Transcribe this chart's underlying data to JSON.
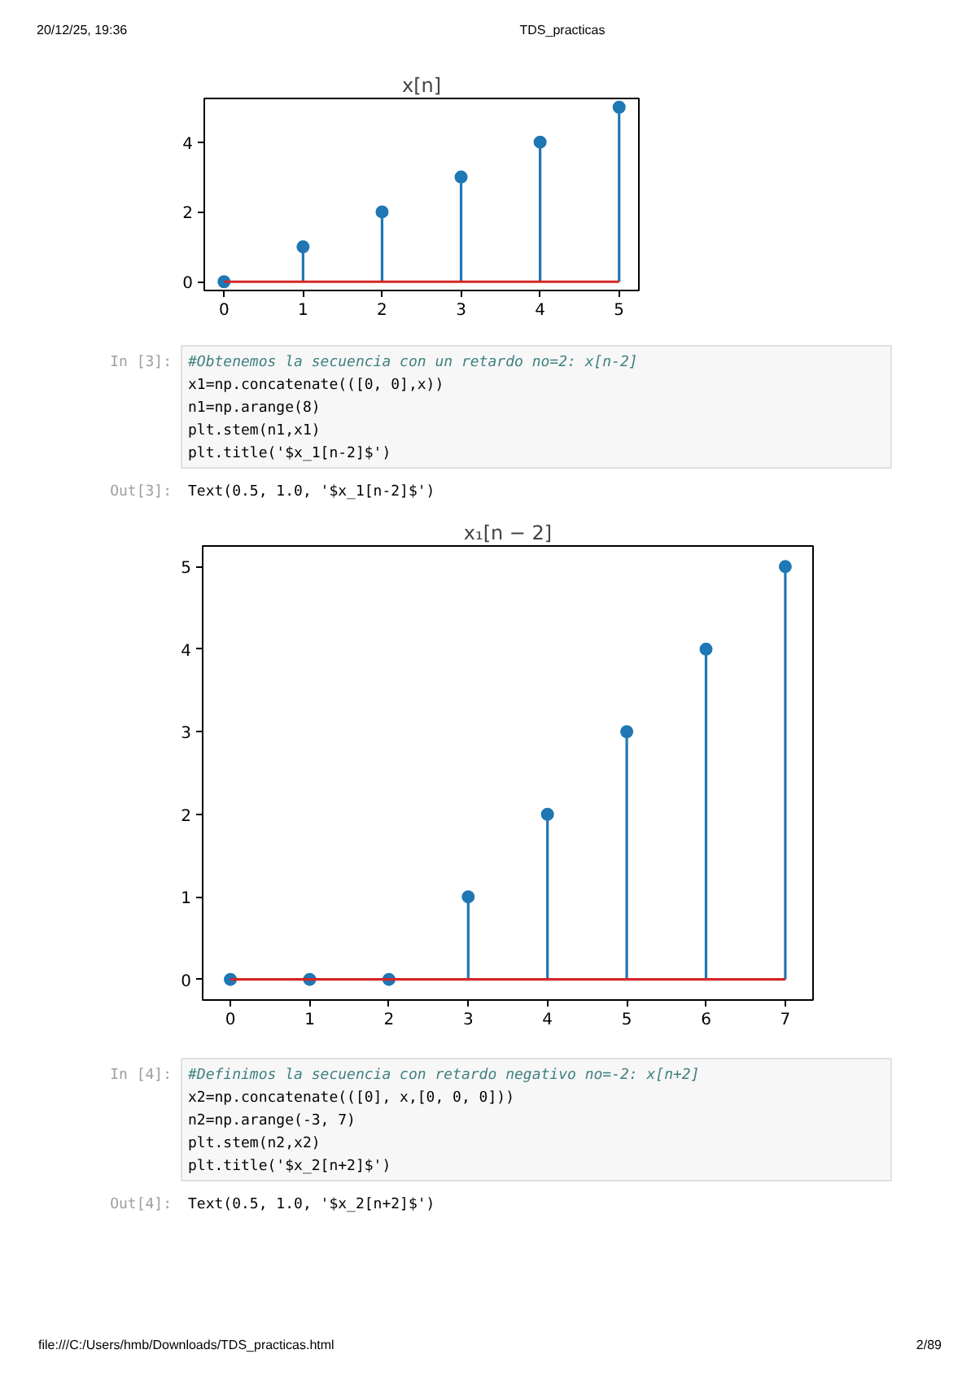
{
  "chart_data": [
    {
      "type": "other",
      "annotations": [
        "20/12/25, 19:36",
        "TDS_practicas"
      ]
    },
    {
      "type": "lollipop",
      "title": "x[n]",
      "x": [
        0,
        1,
        2,
        3,
        4,
        5
      ],
      "values": [
        0,
        1,
        2,
        3,
        4,
        5
      ],
      "color": "#1f77b4",
      "marker": "circle",
      "xlim": [
        -0.25,
        5.25
      ],
      "ylim": [
        -0.25,
        5.25
      ],
      "xticks": [
        0,
        1,
        2,
        3,
        4,
        5
      ],
      "yticks": [
        0,
        2,
        4
      ],
      "ref_lines": [
        {
          "axis": "y",
          "value": 0,
          "color": "#d62728"
        }
      ]
    },
    {
      "type": "other",
      "annotations": [
        "In [3]:",
        "#Obtenemos la secuencia con un retardo no=2: x[n-2]",
        "x1=np.concatenate(([0, 0],x))",
        "n1=np.arange(8)",
        "plt.stem(n1,x1)",
        "plt.title('$x_1[n-2]$')",
        "Out[3]:",
        "Text(0.5, 1.0, '$x_1[n-2]$')"
      ]
    },
    {
      "type": "lollipop",
      "title": "x₁[n − 2]",
      "x": [
        0,
        1,
        2,
        3,
        4,
        5,
        6,
        7
      ],
      "values": [
        0,
        0,
        0,
        1,
        2,
        3,
        4,
        5
      ],
      "color": "#1f77b4",
      "marker": "circle",
      "xlim": [
        -0.35,
        7.35
      ],
      "ylim": [
        -0.25,
        5.25
      ],
      "xticks": [
        0,
        1,
        2,
        3,
        4,
        5,
        6,
        7
      ],
      "yticks": [
        0,
        1,
        2,
        3,
        4,
        5
      ],
      "ref_lines": [
        {
          "axis": "y",
          "value": 0,
          "color": "#d62728"
        }
      ]
    },
    {
      "type": "other",
      "annotations": [
        "In [4]:",
        "#Definimos la secuencia con retardo negativo no=-2: x[n+2]",
        "x2=np.concatenate(([0], x,[0, 0, 0]))",
        "n2=np.arange(-3, 7)",
        "plt.stem(n2,x2)",
        "plt.title('$x_2[n+2]$')",
        "Out[4]:",
        "Text(0.5, 1.0, '$x_2[n+2]$')"
      ]
    },
    {
      "type": "other",
      "annotations": [
        "file:///C:/Users/hmb/Downloads/TDS_practicas.html",
        "2/89"
      ]
    }
  ]
}
